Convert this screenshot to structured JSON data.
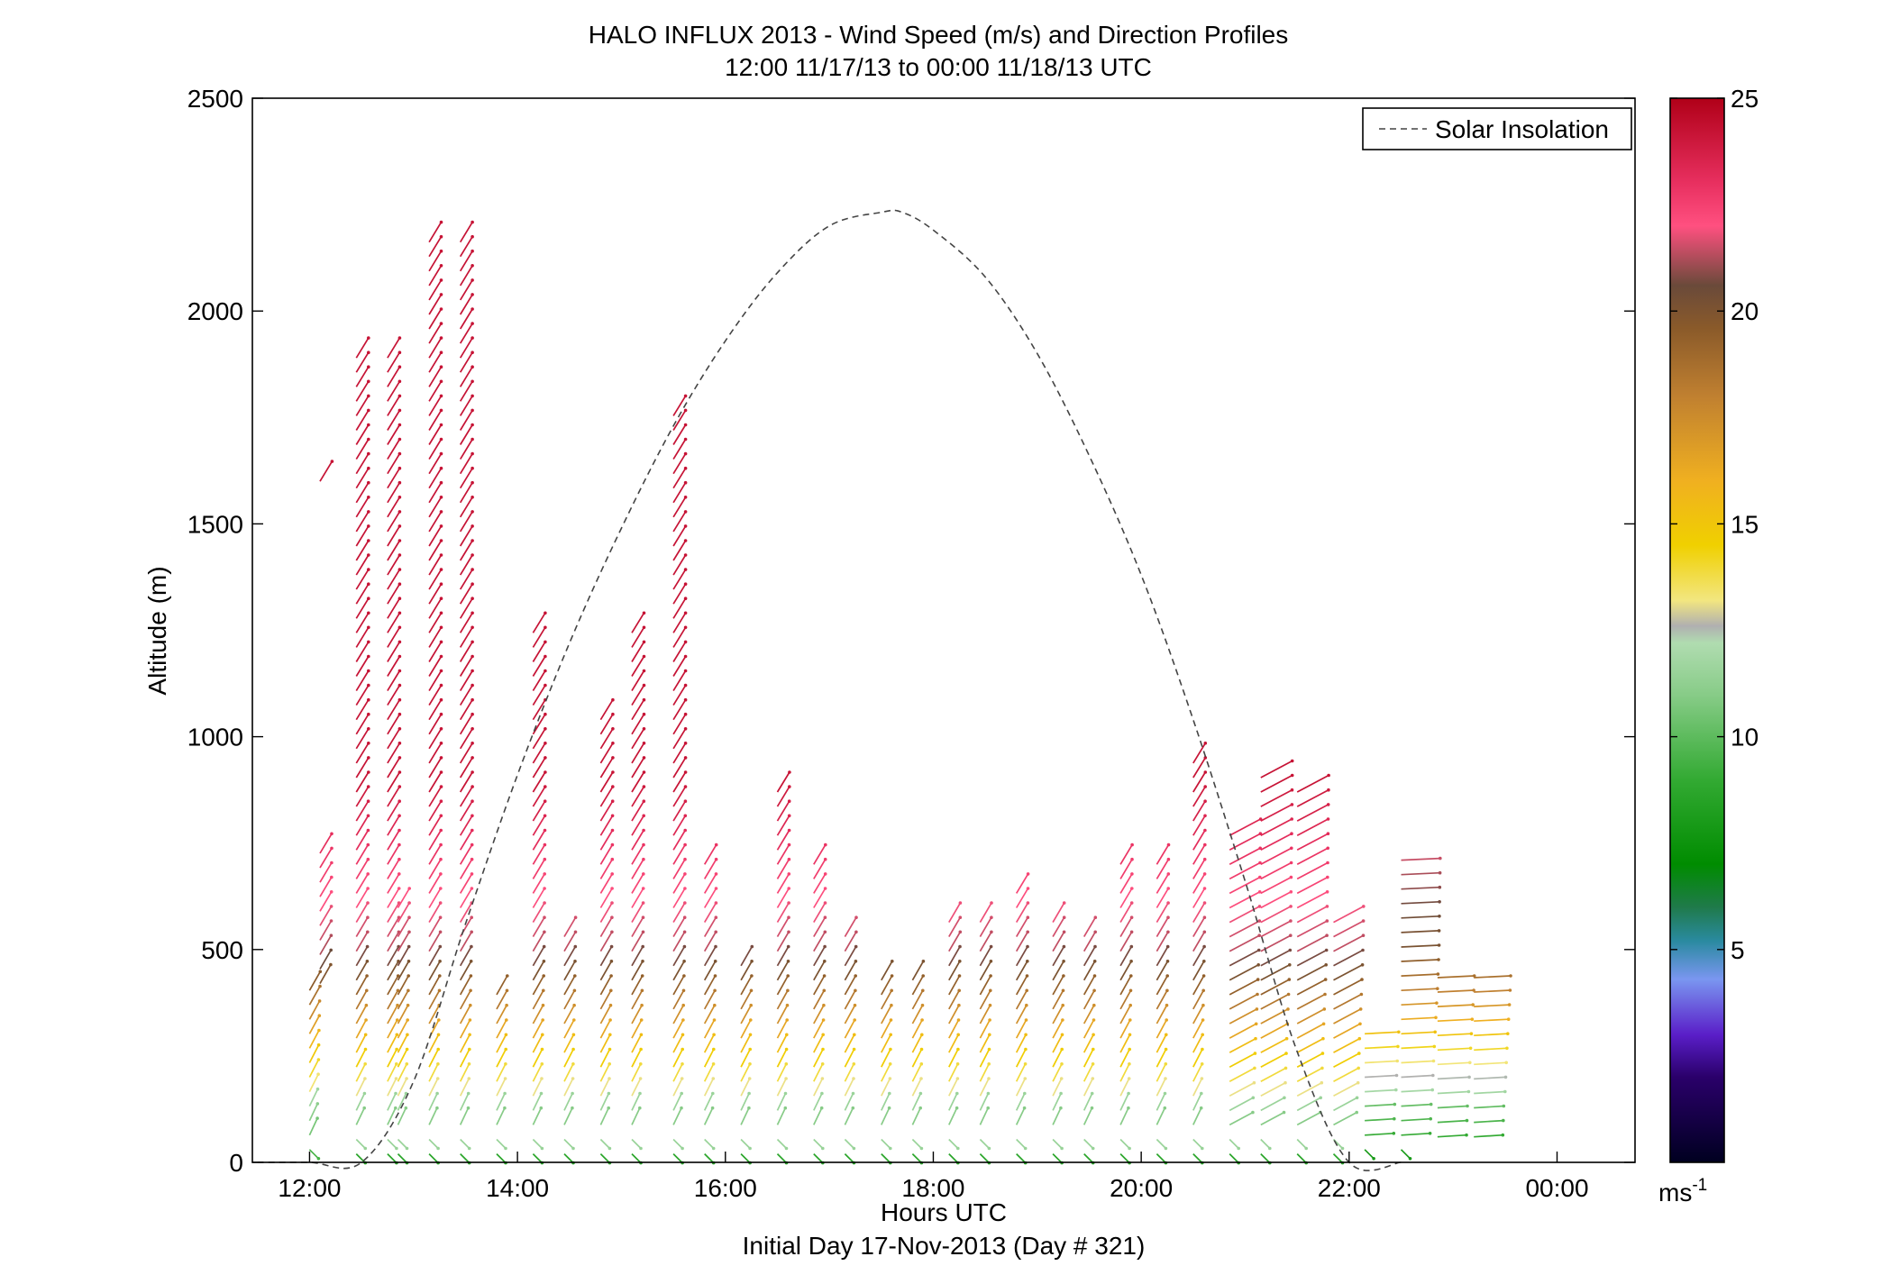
{
  "chart_data": {
    "type": "vector-profile",
    "title": "HALO INFLUX 2013 - Wind Speed (m/s) and Direction Profiles",
    "subtitle": "12:00 11/17/13 to 00:00 11/18/13  UTC",
    "xlabel": "Hours UTC",
    "xlabel2": "Initial Day 17-Nov-2013 (Day # 321)",
    "ylabel": "Altitude (m)",
    "xlim": [
      11.45,
      24.75
    ],
    "ylim": [
      0,
      2500
    ],
    "x_ticks": [
      {
        "value": 12,
        "label": "12:00"
      },
      {
        "value": 14,
        "label": "14:00"
      },
      {
        "value": 16,
        "label": "16:00"
      },
      {
        "value": 18,
        "label": "18:00"
      },
      {
        "value": 20,
        "label": "20:00"
      },
      {
        "value": 22,
        "label": "22:00"
      },
      {
        "value": 24,
        "label": "00:00"
      }
    ],
    "y_ticks": [
      {
        "value": 0,
        "label": "0"
      },
      {
        "value": 500,
        "label": "500"
      },
      {
        "value": 1000,
        "label": "1000"
      },
      {
        "value": 1500,
        "label": "1500"
      },
      {
        "value": 2000,
        "label": "2000"
      },
      {
        "value": 2500,
        "label": "2500"
      }
    ],
    "colorbar": {
      "min": 0,
      "max": 25,
      "unit": "ms",
      "unit_exp": "-1",
      "ticks": [
        {
          "value": 5,
          "label": "5"
        },
        {
          "value": 10,
          "label": "10"
        },
        {
          "value": 15,
          "label": "15"
        },
        {
          "value": 20,
          "label": "20"
        },
        {
          "value": 25,
          "label": "25"
        }
      ],
      "stops": [
        {
          "value": 0,
          "color": "#000020"
        },
        {
          "value": 2,
          "color": "#2a006a"
        },
        {
          "value": 3,
          "color": "#5a1ec8"
        },
        {
          "value": 4.3,
          "color": "#7a96f0"
        },
        {
          "value": 5.2,
          "color": "#2a8aa0"
        },
        {
          "value": 6,
          "color": "#1f7a4a"
        },
        {
          "value": 7,
          "color": "#008c00"
        },
        {
          "value": 9,
          "color": "#33aa33"
        },
        {
          "value": 11,
          "color": "#88cc88"
        },
        {
          "value": 12.2,
          "color": "#b0dcb0"
        },
        {
          "value": 12.6,
          "color": "#b0b0b0"
        },
        {
          "value": 13.2,
          "color": "#f2e680"
        },
        {
          "value": 14.5,
          "color": "#f0d000"
        },
        {
          "value": 16,
          "color": "#f0b020"
        },
        {
          "value": 18,
          "color": "#c08030"
        },
        {
          "value": 19.6,
          "color": "#8a5a2a"
        },
        {
          "value": 20.6,
          "color": "#6a4a3a"
        },
        {
          "value": 22,
          "color": "#ff5080"
        },
        {
          "value": 23,
          "color": "#e83060"
        },
        {
          "value": 25,
          "color": "#b00018"
        }
      ]
    },
    "legend": {
      "label": "Solar Insolation",
      "position": "top-right"
    },
    "solar_insolation": {
      "x": [
        11.5,
        12,
        12.5,
        13,
        13.5,
        14,
        14.5,
        15,
        15.5,
        16,
        16.5,
        17,
        17.5,
        17.7,
        18,
        18.5,
        19,
        19.5,
        20,
        20.5,
        21,
        21.5,
        22,
        22.5
      ],
      "y": [
        0,
        0,
        0,
        190,
        560,
        910,
        1220,
        1490,
        1730,
        1930,
        2090,
        2200,
        2232,
        2232,
        2190,
        2080,
        1900,
        1660,
        1380,
        1040,
        660,
        260,
        0,
        0
      ]
    },
    "profiles": [
      {
        "t": 12.0,
        "bottom": 30,
        "top": 420
      },
      {
        "t": 12.1,
        "bottom": 420,
        "top": 730
      },
      {
        "t": 12.1,
        "bottom": 1600,
        "top": 1600
      },
      {
        "t": 12.45,
        "bottom": 20,
        "top": 1920
      },
      {
        "t": 12.75,
        "bottom": 20,
        "top": 1920
      },
      {
        "t": 12.85,
        "bottom": 20,
        "top": 620
      },
      {
        "t": 13.15,
        "bottom": 20,
        "top": 2180
      },
      {
        "t": 13.45,
        "bottom": 20,
        "top": 2180
      },
      {
        "t": 13.8,
        "bottom": 20,
        "top": 400
      },
      {
        "t": 14.15,
        "bottom": 20,
        "top": 1250
      },
      {
        "t": 14.45,
        "bottom": 20,
        "top": 560
      },
      {
        "t": 14.8,
        "bottom": 20,
        "top": 1060
      },
      {
        "t": 15.1,
        "bottom": 20,
        "top": 1250
      },
      {
        "t": 15.5,
        "bottom": 20,
        "top": 1780
      },
      {
        "t": 15.8,
        "bottom": 20,
        "top": 730
      },
      {
        "t": 16.15,
        "bottom": 20,
        "top": 470
      },
      {
        "t": 16.5,
        "bottom": 20,
        "top": 900
      },
      {
        "t": 16.85,
        "bottom": 20,
        "top": 700
      },
      {
        "t": 17.15,
        "bottom": 20,
        "top": 550
      },
      {
        "t": 17.5,
        "bottom": 20,
        "top": 430
      },
      {
        "t": 17.8,
        "bottom": 20,
        "top": 430
      },
      {
        "t": 18.15,
        "bottom": 20,
        "top": 590
      },
      {
        "t": 18.45,
        "bottom": 20,
        "top": 590
      },
      {
        "t": 18.8,
        "bottom": 20,
        "top": 660
      },
      {
        "t": 19.15,
        "bottom": 20,
        "top": 590
      },
      {
        "t": 19.45,
        "bottom": 20,
        "top": 560
      },
      {
        "t": 19.8,
        "bottom": 20,
        "top": 730
      },
      {
        "t": 20.15,
        "bottom": 20,
        "top": 700
      },
      {
        "t": 20.5,
        "bottom": 20,
        "top": 970
      },
      {
        "t": 20.85,
        "bottom": 20,
        "top": 770
      },
      {
        "t": 21.15,
        "bottom": 20,
        "top": 930
      },
      {
        "t": 21.5,
        "bottom": 20,
        "top": 900
      },
      {
        "t": 21.85,
        "bottom": 20,
        "top": 590
      },
      {
        "t": 22.15,
        "bottom": 30,
        "top": 310
      },
      {
        "t": 22.5,
        "bottom": 30,
        "top": 730
      },
      {
        "t": 22.85,
        "bottom": 60,
        "top": 460
      },
      {
        "t": 23.2,
        "bottom": 60,
        "top": 460
      }
    ]
  }
}
